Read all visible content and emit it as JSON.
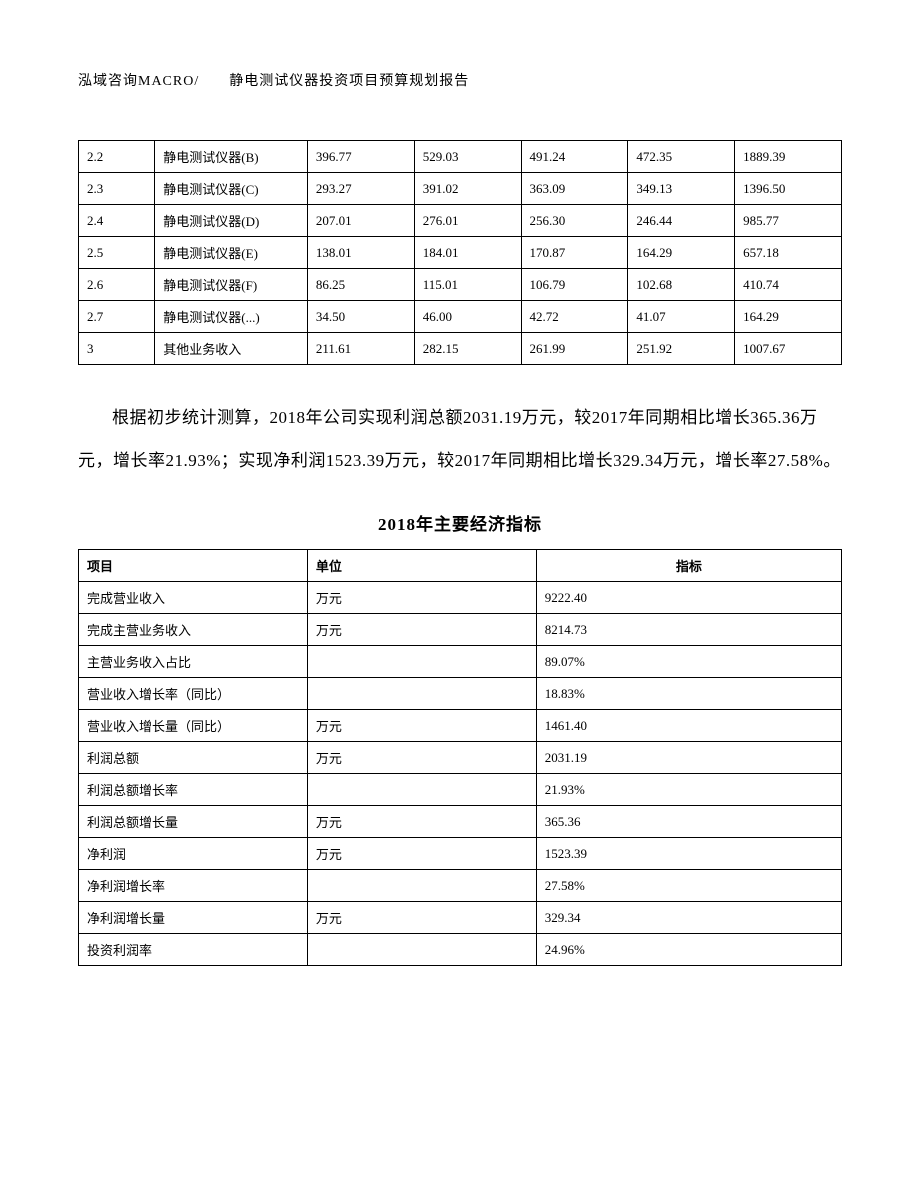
{
  "header": "泓域咨询MACRO/　　静电测试仪器投资项目预算规划报告",
  "table1": {
    "rows": [
      [
        "2.2",
        "静电测试仪器(B)",
        "396.77",
        "529.03",
        "491.24",
        "472.35",
        "1889.39"
      ],
      [
        "2.3",
        "静电测试仪器(C)",
        "293.27",
        "391.02",
        "363.09",
        "349.13",
        "1396.50"
      ],
      [
        "2.4",
        "静电测试仪器(D)",
        "207.01",
        "276.01",
        "256.30",
        "246.44",
        "985.77"
      ],
      [
        "2.5",
        "静电测试仪器(E)",
        "138.01",
        "184.01",
        "170.87",
        "164.29",
        "657.18"
      ],
      [
        "2.6",
        "静电测试仪器(F)",
        "86.25",
        "115.01",
        "106.79",
        "102.68",
        "410.74"
      ],
      [
        "2.7",
        "静电测试仪器(...)",
        "34.50",
        "46.00",
        "42.72",
        "41.07",
        "164.29"
      ],
      [
        "3",
        "其他业务收入",
        "211.61",
        "282.15",
        "261.99",
        "251.92",
        "1007.67"
      ]
    ]
  },
  "paragraph": "根据初步统计测算，2018年公司实现利润总额2031.19万元，较2017年同期相比增长365.36万元，增长率21.93%；实现净利润1523.39万元，较2017年同期相比增长329.34万元，增长率27.58%。",
  "table2_title": "2018年主要经济指标",
  "table2": {
    "headers": [
      "项目",
      "单位",
      "指标"
    ],
    "rows": [
      [
        "完成营业收入",
        "万元",
        "9222.40"
      ],
      [
        "完成主营业务收入",
        "万元",
        "8214.73"
      ],
      [
        "主营业务收入占比",
        "",
        "89.07%"
      ],
      [
        "营业收入增长率（同比）",
        "",
        "18.83%"
      ],
      [
        "营业收入增长量（同比）",
        "万元",
        "1461.40"
      ],
      [
        "利润总额",
        "万元",
        "2031.19"
      ],
      [
        "利润总额增长率",
        "",
        "21.93%"
      ],
      [
        "利润总额增长量",
        "万元",
        "365.36"
      ],
      [
        "净利润",
        "万元",
        "1523.39"
      ],
      [
        "净利润增长率",
        "",
        "27.58%"
      ],
      [
        "净利润增长量",
        "万元",
        "329.34"
      ],
      [
        "投资利润率",
        "",
        "24.96%"
      ]
    ]
  }
}
